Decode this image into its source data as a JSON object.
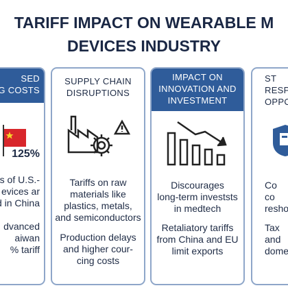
{
  "title": {
    "lines": [
      "TARIFF IMPACT ON WEARABLE M",
      "DEVICES INDUSTRY"
    ]
  },
  "cards": [
    {
      "header": [
        "SED",
        "NG COSTS"
      ],
      "badge": "125%",
      "body": [
        [
          "s of U.S.-",
          "evices ar",
          "d in China"
        ],
        [
          "dvanced",
          "aiwan",
          "% tariff"
        ]
      ]
    },
    {
      "header": [
        "SUPPLY CHAIN",
        "DISRUPTIONS"
      ],
      "body": [
        [
          "Tariffs on raw",
          "materials like",
          "plastics, metals,",
          "and semiconductors"
        ],
        [
          "Production delays",
          "and higher  cour-",
          "cing costs"
        ]
      ]
    },
    {
      "header": [
        "IMPACT ON",
        "INNOVATION AND",
        "INVESTMENT"
      ],
      "body": [
        [
          "Discourages",
          "long-term investsts",
          "in medtech"
        ],
        [
          "Retaliatory tariffs",
          "from China and EU",
          "limit exports"
        ]
      ]
    },
    {
      "header": [
        "ST",
        "RESP",
        "OPPO"
      ],
      "body": [
        [
          "Co",
          "co",
          "reshoring"
        ],
        [
          "Tax",
          "and",
          "domes"
        ]
      ]
    }
  ]
}
